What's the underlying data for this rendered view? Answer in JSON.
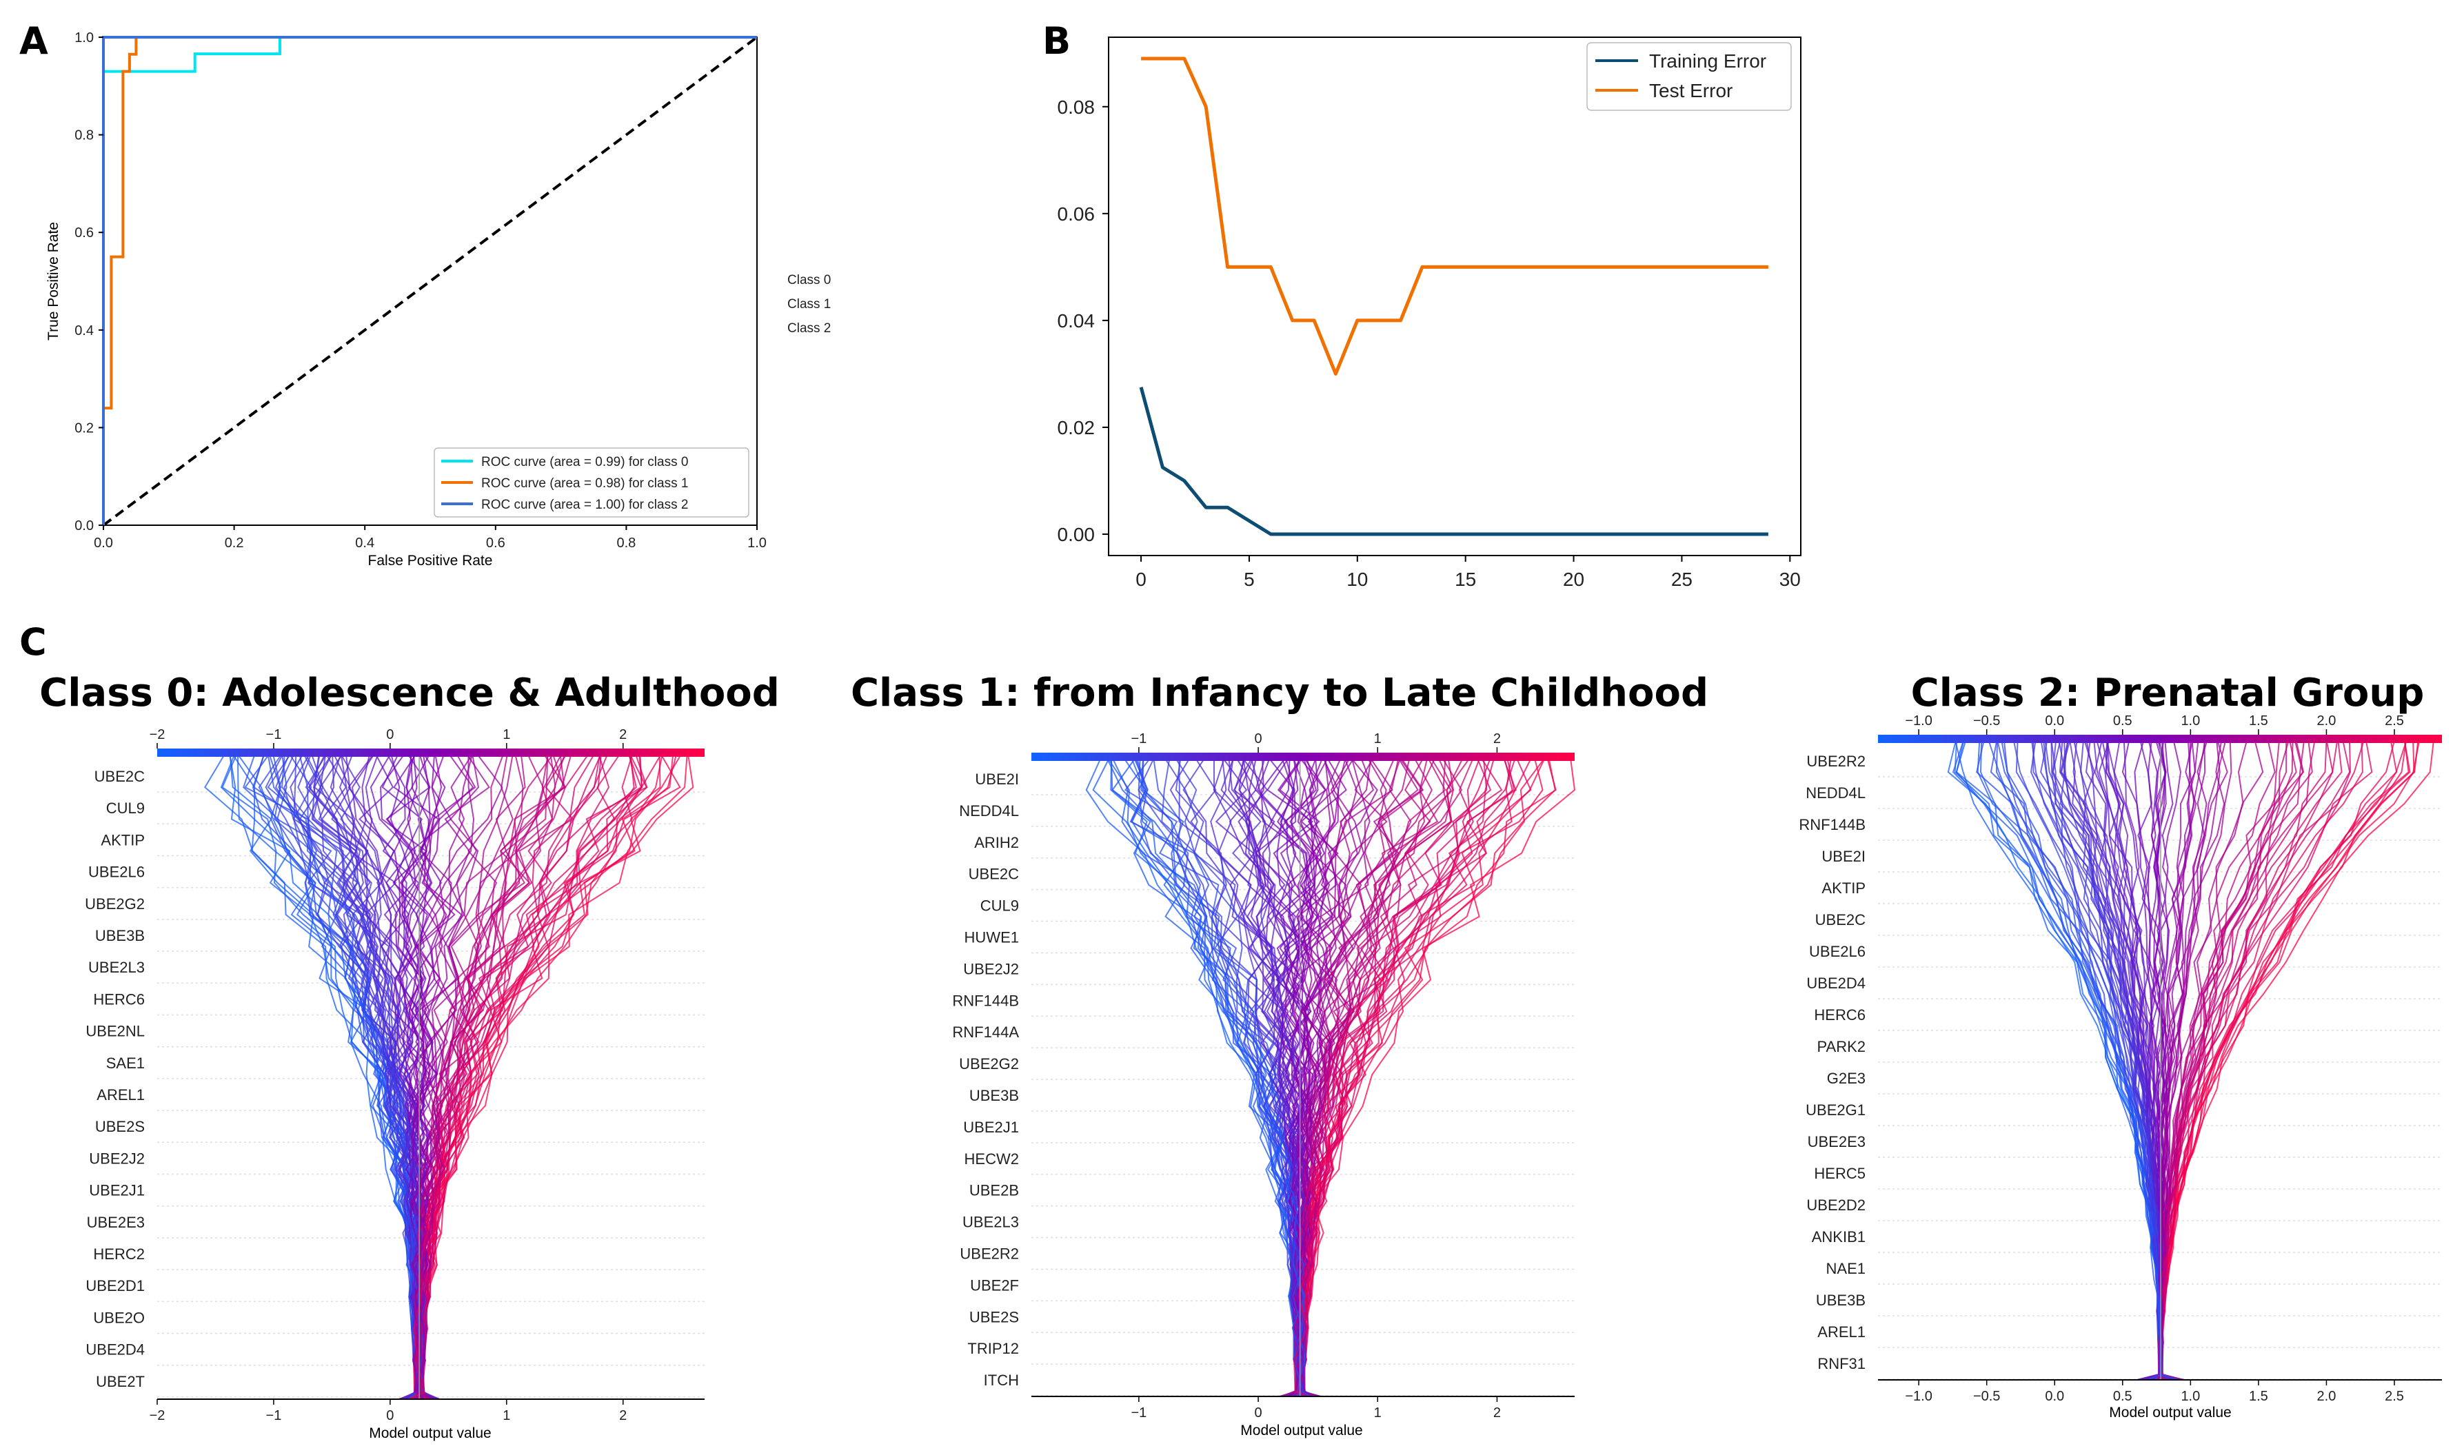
{
  "figure": {
    "panel_labels": [
      "A",
      "B",
      "C"
    ]
  },
  "chart_data": [
    {
      "id": "A",
      "type": "line",
      "title": "",
      "xlabel": "False Positive Rate",
      "ylabel": "True Positive Rate",
      "xlim": [
        0,
        1
      ],
      "ylim": [
        0,
        1
      ],
      "xticks": [
        "0.0",
        "0.2",
        "0.4",
        "0.6",
        "0.8",
        "1.0"
      ],
      "yticks": [
        "0.0",
        "0.2",
        "0.4",
        "0.6",
        "0.8",
        "1.0"
      ],
      "class_labels": [
        "Class 0",
        "Class 1",
        "Class 2"
      ],
      "legend_position": "lower right",
      "series": [
        {
          "name": "ROC curve (area = 0.99) for class 0",
          "color": "#00e5ee",
          "x": [
            0,
            0,
            0.14,
            0.14,
            0.27,
            0.27,
            1
          ],
          "y": [
            0,
            0.93,
            0.93,
            0.966,
            0.966,
            1,
            1
          ]
        },
        {
          "name": "ROC curve (area = 0.98) for class 1",
          "color": "#f07000",
          "x": [
            0,
            0,
            0.012,
            0.012,
            0.03,
            0.03,
            0.04,
            0.04,
            0.05,
            0.05,
            1
          ],
          "y": [
            0,
            0.24,
            0.24,
            0.55,
            0.55,
            0.93,
            0.93,
            0.965,
            0.965,
            1,
            1
          ]
        },
        {
          "name": "ROC curve (area = 1.00) for class 2",
          "color": "#3b6fd6",
          "x": [
            0,
            0,
            1
          ],
          "y": [
            0,
            1,
            1
          ]
        }
      ],
      "diagonal": {
        "x": [
          0,
          1
        ],
        "y": [
          0,
          1
        ],
        "style": "dashed",
        "color": "#000000"
      }
    },
    {
      "id": "B",
      "type": "line",
      "title": "",
      "xlabel": "",
      "ylabel": "",
      "xlim": [
        -1.5,
        30.5
      ],
      "ylim": [
        -0.004,
        0.093
      ],
      "xticks": [
        "0",
        "5",
        "10",
        "15",
        "20",
        "25",
        "30"
      ],
      "yticks": [
        "0.00",
        "0.02",
        "0.04",
        "0.06",
        "0.08"
      ],
      "legend_position": "top-right",
      "series": [
        {
          "name": "Training Error",
          "color": "#0d4c73",
          "x": [
            0,
            1,
            2,
            3,
            4,
            5,
            6,
            7,
            8,
            9,
            10,
            11,
            12,
            13,
            14,
            15,
            16,
            17,
            18,
            19,
            20,
            21,
            22,
            23,
            24,
            25,
            26,
            27,
            28,
            29
          ],
          "y": [
            0.0275,
            0.0125,
            0.01,
            0.005,
            0.005,
            0.0025,
            0,
            0,
            0,
            0,
            0,
            0,
            0,
            0,
            0,
            0,
            0,
            0,
            0,
            0,
            0,
            0,
            0,
            0,
            0,
            0,
            0,
            0,
            0,
            0
          ]
        },
        {
          "name": "Test Error",
          "color": "#f07000",
          "x": [
            0,
            1,
            2,
            3,
            4,
            5,
            6,
            7,
            8,
            9,
            10,
            11,
            12,
            13,
            14,
            15,
            16,
            17,
            18,
            19,
            20,
            21,
            22,
            23,
            24,
            25,
            26,
            27,
            28,
            29
          ],
          "y": [
            0.089,
            0.089,
            0.089,
            0.08,
            0.05,
            0.05,
            0.05,
            0.04,
            0.04,
            0.03,
            0.04,
            0.04,
            0.04,
            0.05,
            0.05,
            0.05,
            0.05,
            0.05,
            0.05,
            0.05,
            0.05,
            0.05,
            0.05,
            0.05,
            0.05,
            0.05,
            0.05,
            0.05,
            0.05,
            0.05
          ]
        }
      ]
    },
    {
      "id": "C0",
      "type": "line",
      "title": "Class 0: Adolescence & Adulthood",
      "xlabel": "Model output value",
      "xlim": [
        -2,
        2.7
      ],
      "base_value": 0.25,
      "xticks": [
        -2,
        -1,
        0,
        1,
        2
      ],
      "features": [
        "UBE2C",
        "CUL9",
        "AKTIP",
        "UBE2L6",
        "UBE2G2",
        "UBE3B",
        "UBE2L3",
        "HERC6",
        "UBE2NL",
        "SAE1",
        "AREL1",
        "UBE2S",
        "UBE2J2",
        "UBE2J1",
        "UBE2E3",
        "HERC2",
        "UBE2D1",
        "UBE2O",
        "UBE2D4",
        "UBE2T"
      ]
    },
    {
      "id": "C1",
      "type": "line",
      "title": "Class 1: from Infancy to Late Childhood",
      "xlabel": "Model output value",
      "xlim": [
        -1.9,
        2.65
      ],
      "base_value": 0.35,
      "xticks": [
        -1,
        0,
        1,
        2
      ],
      "features": [
        "UBE2I",
        "NEDD4L",
        "ARIH2",
        "UBE2C",
        "CUL9",
        "HUWE1",
        "UBE2J2",
        "RNF144B",
        "RNF144A",
        "UBE2G2",
        "UBE3B",
        "UBE2J1",
        "HECW2",
        "UBE2B",
        "UBE2L3",
        "UBE2R2",
        "UBE2F",
        "UBE2S",
        "TRIP12",
        "ITCH"
      ]
    },
    {
      "id": "C2",
      "type": "line",
      "title": "Class 2: Prenatal Group",
      "xlabel": "Model output value",
      "xlim": [
        -1.3,
        2.85
      ],
      "base_value": 0.78,
      "xticks": [
        "-1.0",
        "-0.5",
        "0.0",
        "0.5",
        "1.0",
        "1.5",
        "2.0",
        "2.5"
      ],
      "features": [
        "UBE2R2",
        "NEDD4L",
        "RNF144B",
        "UBE2I",
        "AKTIP",
        "UBE2C",
        "UBE2L6",
        "UBE2D4",
        "HERC6",
        "PARK2",
        "G2E3",
        "UBE2G1",
        "UBE2E3",
        "HERC5",
        "UBE2D2",
        "ANKIB1",
        "NAE1",
        "UBE3B",
        "AREL1",
        "RNF31"
      ]
    }
  ]
}
